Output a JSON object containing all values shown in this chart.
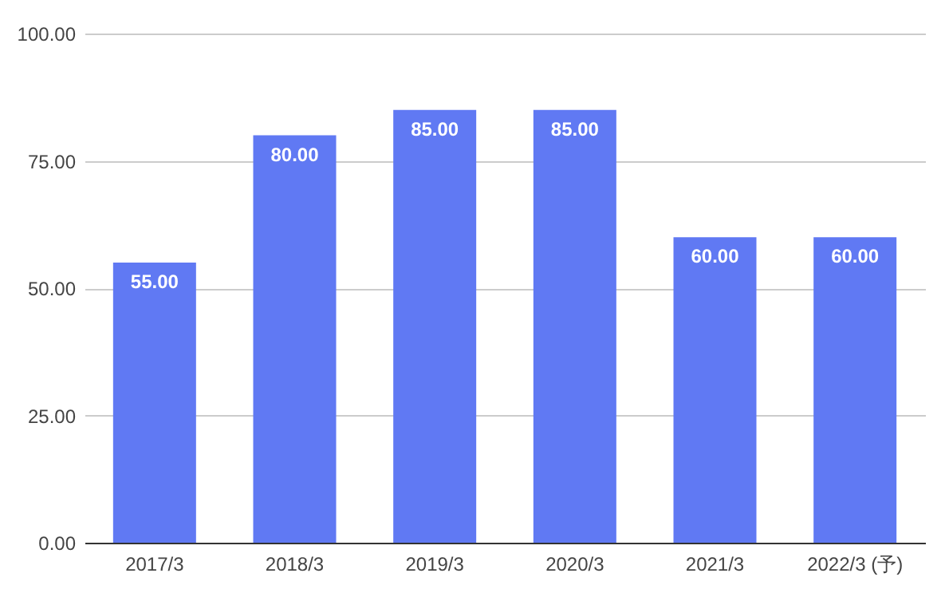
{
  "chart_data": {
    "type": "bar",
    "categories": [
      "2017/3",
      "2018/3",
      "2019/3",
      "2020/3",
      "2021/3",
      "2022/3 (予)"
    ],
    "values": [
      55,
      80,
      85,
      85,
      60,
      60
    ],
    "value_labels": [
      "55.00",
      "80.00",
      "85.00",
      "85.00",
      "60.00",
      "60.00"
    ],
    "color": "#6079f3",
    "ylim": [
      0,
      100
    ],
    "yticks": [
      {
        "value": 0,
        "label": "0.00"
      },
      {
        "value": 25,
        "label": "25.00"
      },
      {
        "value": 50,
        "label": "50.00"
      },
      {
        "value": 75,
        "label": "75.00"
      },
      {
        "value": 100,
        "label": "100.00"
      }
    ],
    "grid": "y"
  }
}
